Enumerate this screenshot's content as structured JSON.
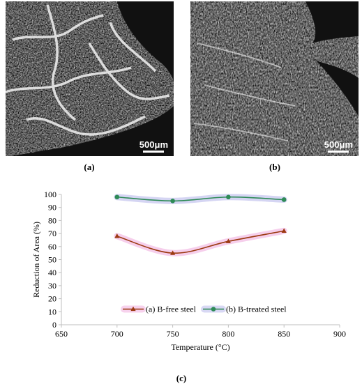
{
  "panels": {
    "a": {
      "label": "(a)",
      "scale_text": "500μm"
    },
    "b": {
      "label": "(b)",
      "scale_text": "500μm"
    },
    "c": {
      "label": "(c)"
    }
  },
  "colors": {
    "series_a": "#9c3a12",
    "series_b": "#2e8b57",
    "series_a_glow": "#f3bfe6",
    "series_b_glow": "#c7c7ef",
    "axis": "#bfbfbf"
  },
  "chart_data": {
    "type": "line",
    "xlabel": "Temperature (°C)",
    "ylabel": "Reduction of Area (%)",
    "xlim": [
      650,
      900
    ],
    "ylim": [
      0,
      100
    ],
    "xticks": [
      650,
      700,
      750,
      800,
      850,
      900
    ],
    "yticks": [
      0,
      10,
      20,
      30,
      40,
      50,
      60,
      70,
      80,
      90,
      100
    ],
    "grid": false,
    "smooth": true,
    "legend_position": "bottom-center",
    "series": [
      {
        "name": "(a) B-free steel",
        "marker": "triangle",
        "x": [
          700,
          750,
          800,
          850
        ],
        "y": [
          68,
          55,
          64,
          72
        ]
      },
      {
        "name": "(b) B-treated steel",
        "marker": "circle",
        "x": [
          700,
          750,
          800,
          850
        ],
        "y": [
          98,
          95,
          98,
          96
        ]
      }
    ]
  }
}
